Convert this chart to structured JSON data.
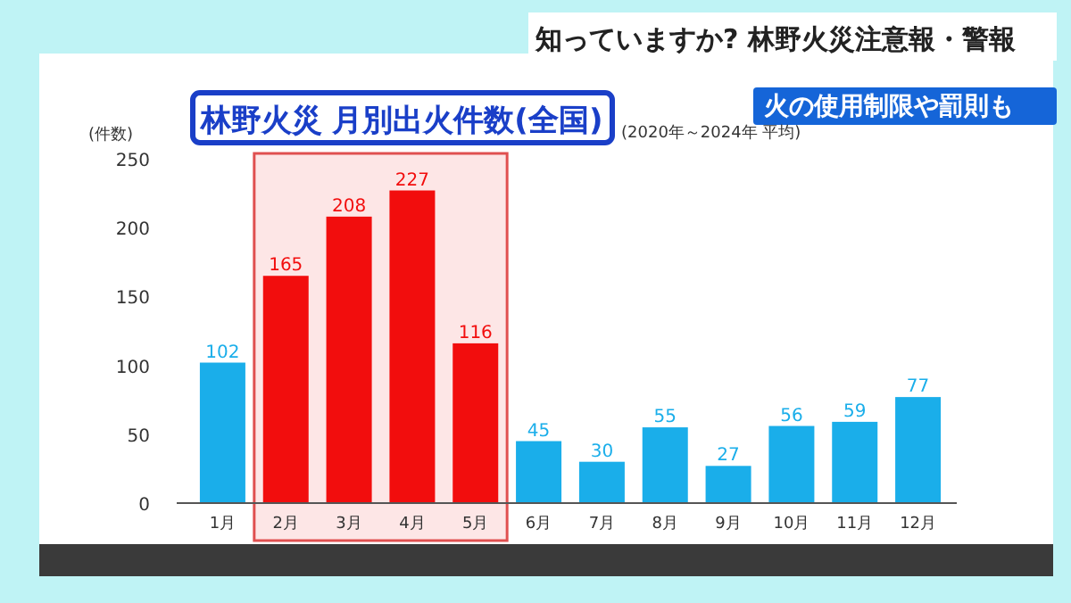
{
  "chart_data": {
    "type": "bar",
    "title": "林野火災 月別出火件数(全国)",
    "subtitle": "(2020年～2024年 平均)",
    "ylabel": "(件数)",
    "annotations": [
      "知っていますか? 林野火災注意報・警報",
      "火の使用制限や罰則も"
    ],
    "categories": [
      "1月",
      "2月",
      "3月",
      "4月",
      "5月",
      "6月",
      "7月",
      "8月",
      "9月",
      "10月",
      "11月",
      "12月"
    ],
    "values": [
      102,
      165,
      208,
      227,
      116,
      45,
      30,
      55,
      27,
      56,
      59,
      77
    ],
    "colors": [
      "#1aaeea",
      "#f20d0d",
      "#f20d0d",
      "#f20d0d",
      "#f20d0d",
      "#1aaeea",
      "#1aaeea",
      "#1aaeea",
      "#1aaeea",
      "#1aaeea",
      "#1aaeea",
      "#1aaeea"
    ],
    "ylim": [
      0,
      250
    ],
    "yticks": [
      0,
      50,
      100,
      150,
      200,
      250
    ],
    "data_labels": true,
    "bands": [
      {
        "axis": "x",
        "from": "2月",
        "to": "5月",
        "color": "#e05050"
      }
    ]
  }
}
